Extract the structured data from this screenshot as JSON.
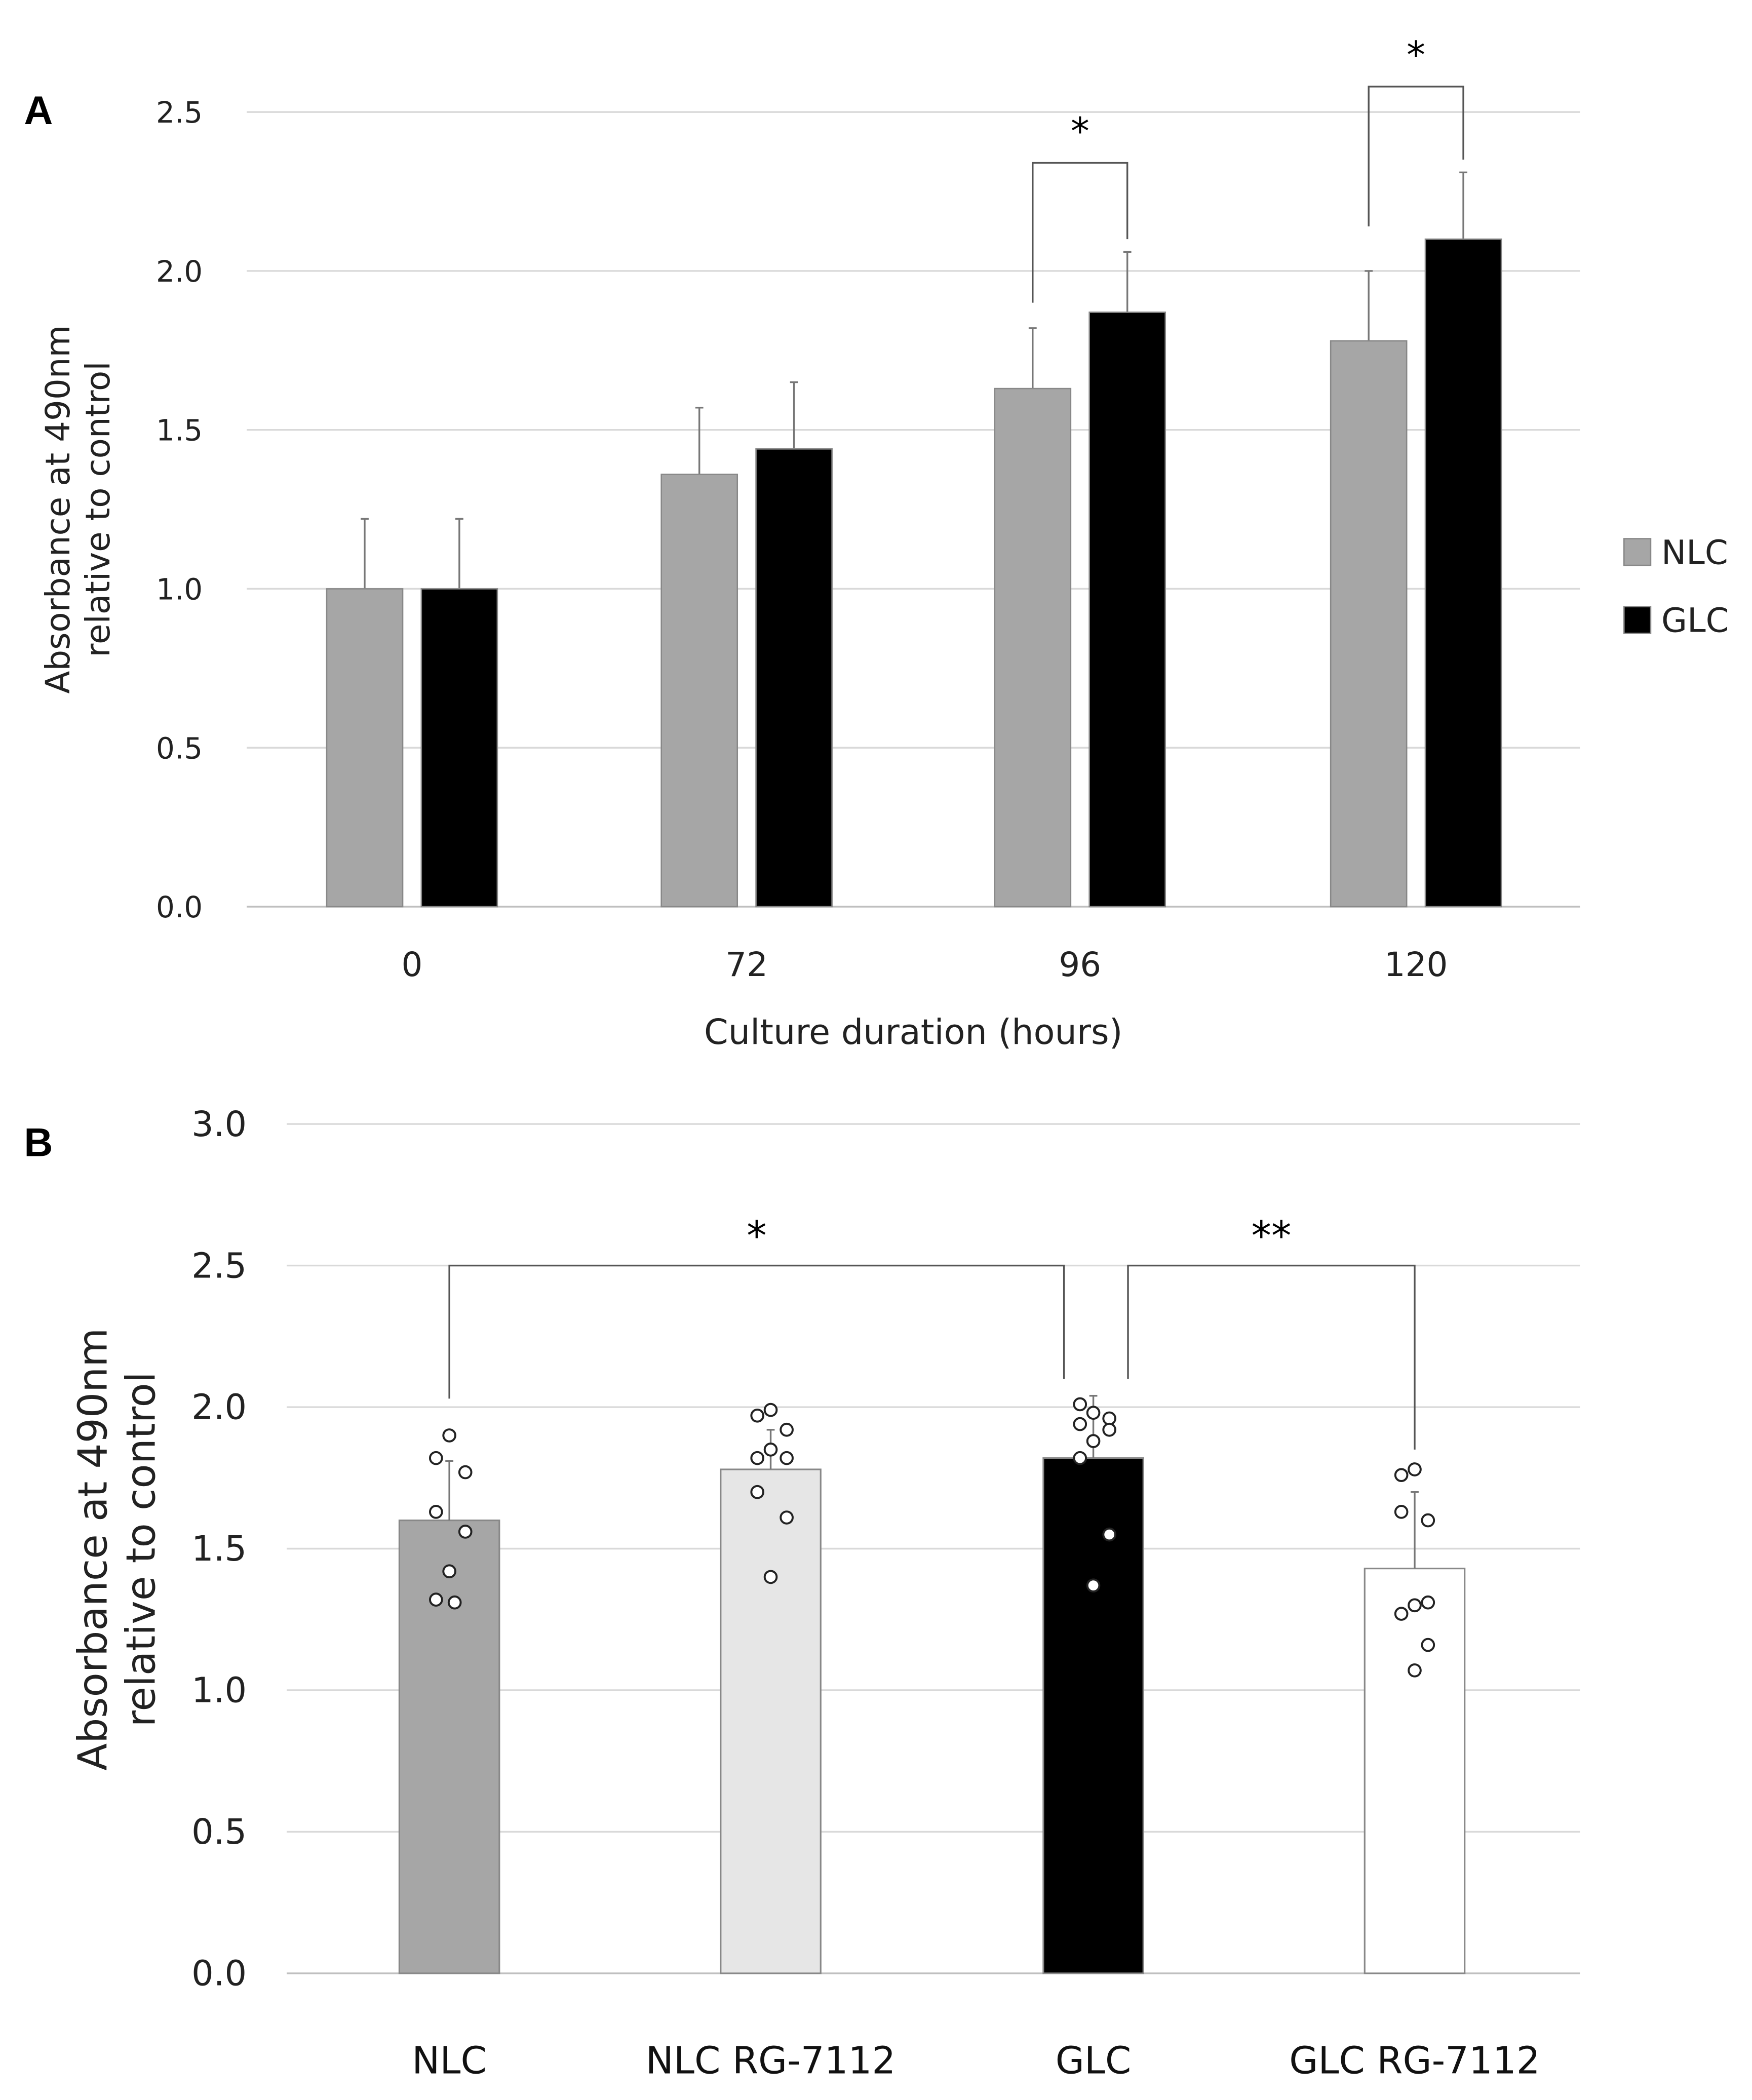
{
  "chart_data": [
    {
      "panel_label": "A",
      "type": "bar",
      "xlabel": "Culture duration (hours)",
      "ylabel": [
        "Absorbance at 490nm",
        "relative to control"
      ],
      "ylim": [
        0,
        2.5
      ],
      "yticks": [
        "0.0",
        "0.5",
        "1.0",
        "1.5",
        "2.0",
        "2.5"
      ],
      "grid": true,
      "legend": "right",
      "categories": [
        "0",
        "72",
        "96",
        "120"
      ],
      "series": [
        {
          "name": "NLC",
          "color": "#a6a6a6",
          "values": [
            1.0,
            1.36,
            1.63,
            1.78
          ],
          "error_upper": [
            1.22,
            1.57,
            1.82,
            2.0
          ]
        },
        {
          "name": "GLC",
          "color": "#000000",
          "values": [
            1.0,
            1.44,
            1.87,
            2.1
          ],
          "error_upper": [
            1.22,
            1.65,
            2.06,
            2.31
          ]
        }
      ],
      "annotations": [
        {
          "text": "*",
          "between": [
            "96 NLC",
            "96 GLC"
          ]
        },
        {
          "text": "*",
          "between": [
            "120 NLC",
            "120 GLC"
          ]
        }
      ]
    },
    {
      "panel_label": "B",
      "type": "bar",
      "xlabel": "",
      "ylabel": [
        "Absorbance at 490nm",
        "relative to control"
      ],
      "ylim": [
        0,
        3.0
      ],
      "yticks": [
        "0.0",
        "0.5",
        "1.0",
        "1.5",
        "2.0",
        "2.5",
        "3.0"
      ],
      "grid": true,
      "categories": [
        "NLC",
        "NLC RG-7112",
        "GLC",
        "GLC RG-7112"
      ],
      "colors": [
        "#a6a6a6",
        "#e6e6e6",
        "#000000",
        "#ffffff"
      ],
      "values": [
        1.6,
        1.78,
        1.82,
        1.43
      ],
      "error_upper": [
        1.81,
        1.92,
        2.04,
        1.7
      ],
      "points": [
        [
          1.9,
          1.82,
          1.77,
          1.63,
          1.56,
          1.42,
          1.32,
          1.31
        ],
        [
          1.99,
          1.97,
          1.92,
          1.85,
          1.82,
          1.82,
          1.7,
          1.61,
          1.4
        ],
        [
          2.01,
          1.98,
          1.96,
          1.94,
          1.92,
          1.88,
          1.82,
          1.55,
          1.37
        ],
        [
          1.78,
          1.76,
          1.63,
          1.6,
          1.31,
          1.3,
          1.27,
          1.16,
          1.07
        ]
      ],
      "annotations": [
        {
          "text": "*",
          "between": [
            "NLC",
            "GLC"
          ]
        },
        {
          "text": "**",
          "between": [
            "GLC",
            "GLC RG-7112"
          ]
        }
      ]
    }
  ]
}
